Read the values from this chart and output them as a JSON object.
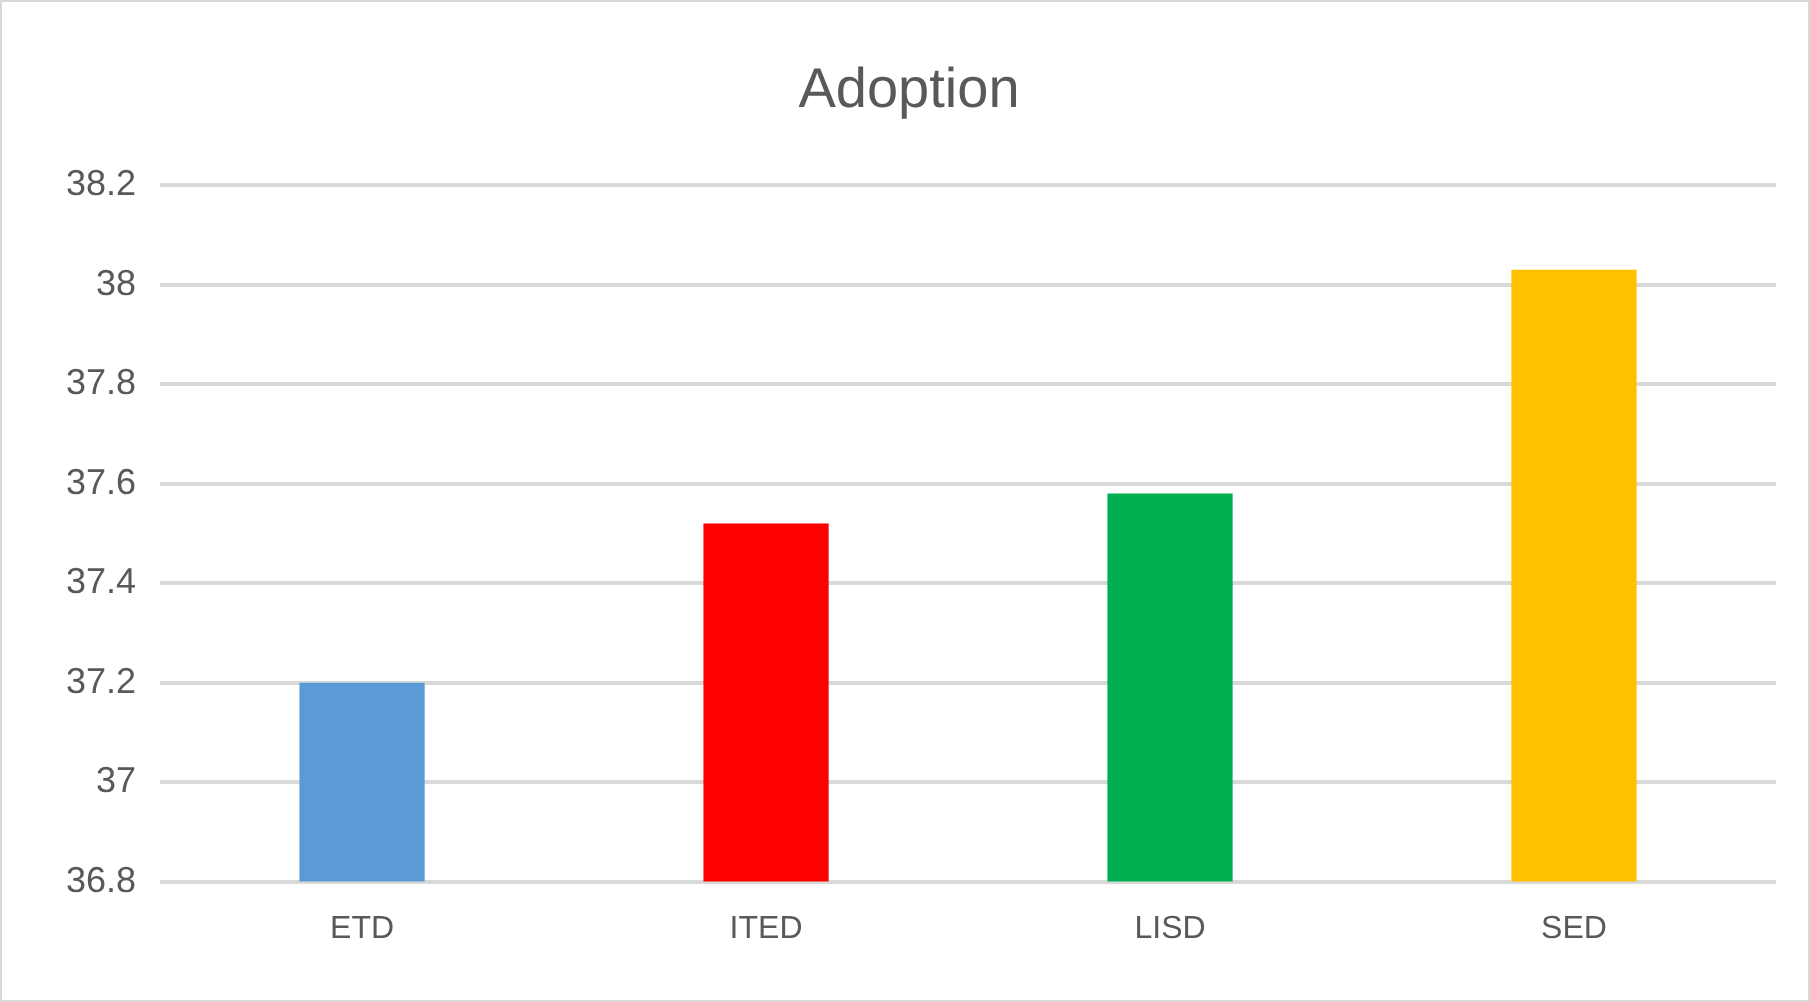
{
  "chart_data": {
    "type": "bar",
    "title": "Adoption",
    "categories": [
      "ETD",
      "ITED",
      "LISD",
      "SED"
    ],
    "values": [
      37.2,
      37.52,
      37.58,
      38.03
    ],
    "colors": [
      "#5b9bd5",
      "#ff0000",
      "#00b050",
      "#ffc000"
    ],
    "ylim": [
      36.8,
      38.2
    ],
    "yticks": [
      36.8,
      37,
      37.2,
      37.4,
      37.6,
      37.8,
      38,
      38.2
    ],
    "grid": "y",
    "legend": false
  }
}
